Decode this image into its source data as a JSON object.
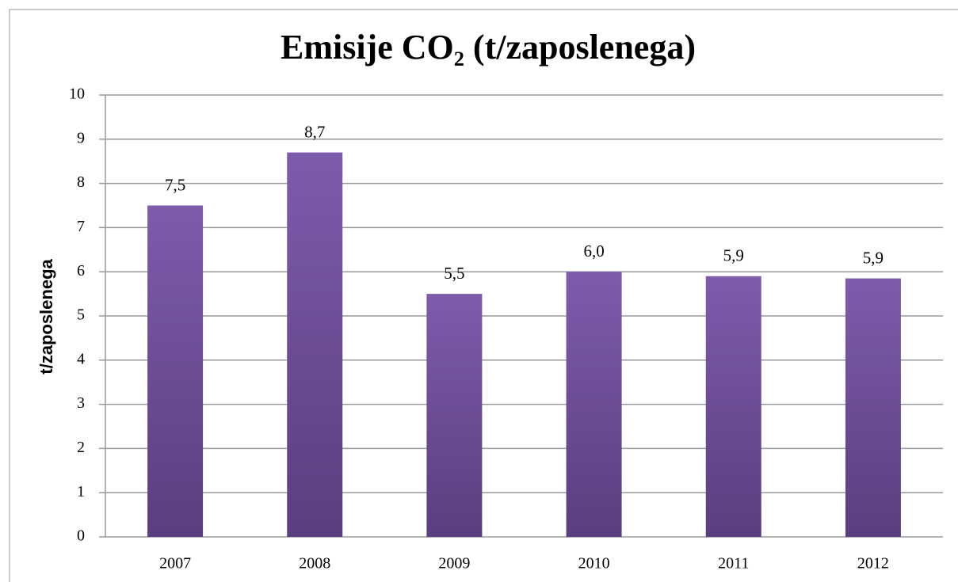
{
  "chart_data": {
    "type": "bar",
    "title": "Emisije CO₂ (t/zaposlenega)",
    "y_label": "t/zaposlenega",
    "categories": [
      "2007",
      "2008",
      "2009",
      "2010",
      "2011",
      "2012"
    ],
    "values": [
      7.5,
      8.7,
      5.5,
      6.0,
      5.9,
      5.85
    ],
    "value_labels": [
      "7,5",
      "8,7",
      "5,5",
      "6,0",
      "5,9",
      "5,9"
    ],
    "color": "#6e4f98",
    "ylim": [
      0,
      10
    ],
    "yticks": [
      0,
      1,
      2,
      3,
      4,
      5,
      6,
      7,
      8,
      9,
      10
    ],
    "grid": true
  }
}
